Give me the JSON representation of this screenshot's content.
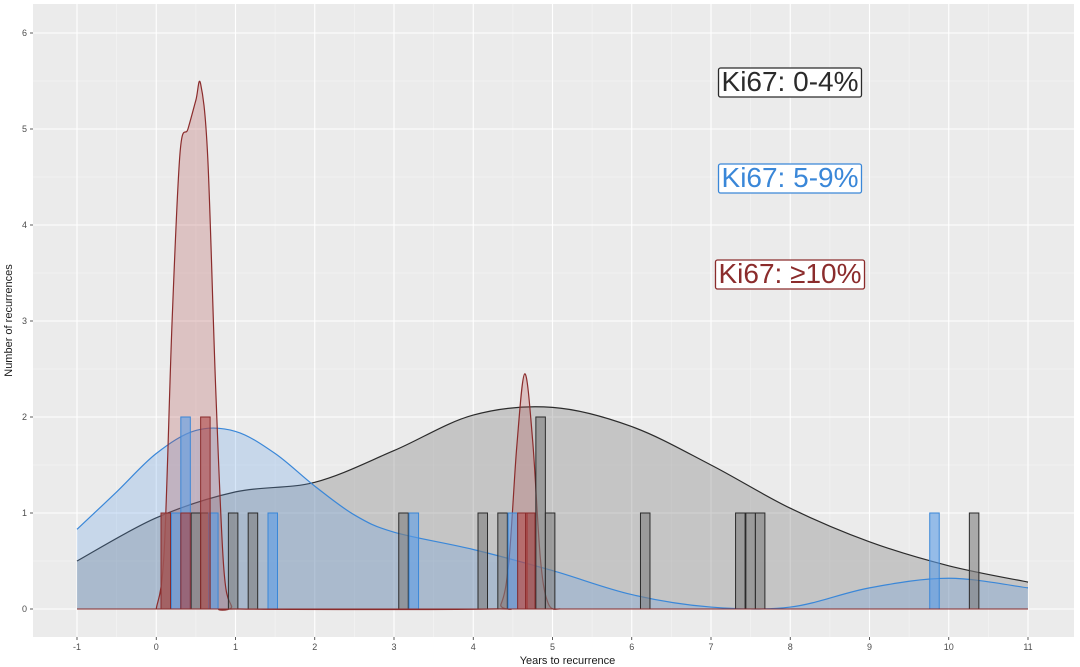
{
  "chart_data": {
    "type": "histogram+density",
    "xlabel": "Years to recurrence",
    "ylabel": "Number of recurrences",
    "xlim": [
      -1,
      11
    ],
    "ylim": [
      0,
      6
    ],
    "x_ticks": [
      "-1",
      "0",
      "1",
      "2",
      "3",
      "4",
      "5",
      "6",
      "7",
      "8",
      "9",
      "10",
      "11"
    ],
    "y_ticks": [
      "0",
      "1",
      "2",
      "3",
      "4",
      "5",
      "6"
    ],
    "grid": true,
    "legend_placement": "top-right",
    "bin_width": 0.12,
    "series": [
      {
        "name": "Ki67: 0-4%",
        "color": "#2b2b2b",
        "fill": "#7f7f7f",
        "bars": [
          {
            "x": 0.12,
            "count": 1
          },
          {
            "x": 0.37,
            "count": 1
          },
          {
            "x": 0.5,
            "count": 1
          },
          {
            "x": 0.62,
            "count": 1
          },
          {
            "x": 0.97,
            "count": 1
          },
          {
            "x": 1.22,
            "count": 1
          },
          {
            "x": 3.12,
            "count": 1
          },
          {
            "x": 4.12,
            "count": 1
          },
          {
            "x": 4.37,
            "count": 1
          },
          {
            "x": 4.72,
            "count": 1
          },
          {
            "x": 4.85,
            "count": 2
          },
          {
            "x": 4.97,
            "count": 1
          },
          {
            "x": 6.17,
            "count": 1
          },
          {
            "x": 7.37,
            "count": 1
          },
          {
            "x": 7.5,
            "count": 1
          },
          {
            "x": 7.62,
            "count": 1
          },
          {
            "x": 10.32,
            "count": 1
          }
        ],
        "density": [
          [
            -1,
            0.5
          ],
          [
            0,
            0.95
          ],
          [
            1,
            1.22
          ],
          [
            2,
            1.32
          ],
          [
            3,
            1.65
          ],
          [
            4,
            2.02
          ],
          [
            5,
            2.1
          ],
          [
            6,
            1.9
          ],
          [
            7,
            1.5
          ],
          [
            8,
            1.05
          ],
          [
            9,
            0.7
          ],
          [
            10,
            0.45
          ],
          [
            11,
            0.28
          ]
        ]
      },
      {
        "name": "Ki67: 5-9%",
        "color": "#3a87d8",
        "fill": "#5b9de6",
        "bars": [
          {
            "x": 0.25,
            "count": 1
          },
          {
            "x": 0.37,
            "count": 2
          },
          {
            "x": 0.72,
            "count": 1
          },
          {
            "x": 1.47,
            "count": 1
          },
          {
            "x": 3.25,
            "count": 1
          },
          {
            "x": 4.5,
            "count": 1
          },
          {
            "x": 9.82,
            "count": 1
          }
        ],
        "density": [
          [
            -1,
            0.83
          ],
          [
            -0.5,
            1.22
          ],
          [
            0,
            1.62
          ],
          [
            0.5,
            1.86
          ],
          [
            1,
            1.85
          ],
          [
            1.5,
            1.62
          ],
          [
            2,
            1.28
          ],
          [
            2.5,
            0.98
          ],
          [
            3,
            0.8
          ],
          [
            4,
            0.62
          ],
          [
            5,
            0.4
          ],
          [
            6,
            0.15
          ],
          [
            7,
            0.02
          ],
          [
            8,
            0.02
          ],
          [
            9,
            0.22
          ],
          [
            10,
            0.32
          ],
          [
            11,
            0.22
          ]
        ]
      },
      {
        "name": "Ki67: ≥10%",
        "color": "#8b2c2c",
        "fill": "#b04848",
        "bars": [
          {
            "x": 0.12,
            "count": 1
          },
          {
            "x": 0.37,
            "count": 1
          },
          {
            "x": 0.62,
            "count": 2
          },
          {
            "x": 4.62,
            "count": 1
          },
          {
            "x": 4.72,
            "count": 1
          }
        ],
        "density": [
          [
            0.0,
            0.0
          ],
          [
            0.1,
            0.6
          ],
          [
            0.2,
            3.0
          ],
          [
            0.3,
            4.75
          ],
          [
            0.4,
            5.0
          ],
          [
            0.5,
            5.3
          ],
          [
            0.56,
            5.47
          ],
          [
            0.65,
            4.7
          ],
          [
            0.75,
            2.3
          ],
          [
            0.85,
            0.45
          ],
          [
            0.95,
            0.03
          ],
          [
            1.05,
            0.0
          ],
          [
            4.2,
            0.0
          ],
          [
            4.35,
            0.05
          ],
          [
            4.45,
            0.5
          ],
          [
            4.55,
            1.7
          ],
          [
            4.65,
            2.45
          ],
          [
            4.75,
            1.75
          ],
          [
            4.85,
            0.5
          ],
          [
            4.95,
            0.05
          ],
          [
            5.1,
            0.0
          ]
        ]
      }
    ]
  }
}
